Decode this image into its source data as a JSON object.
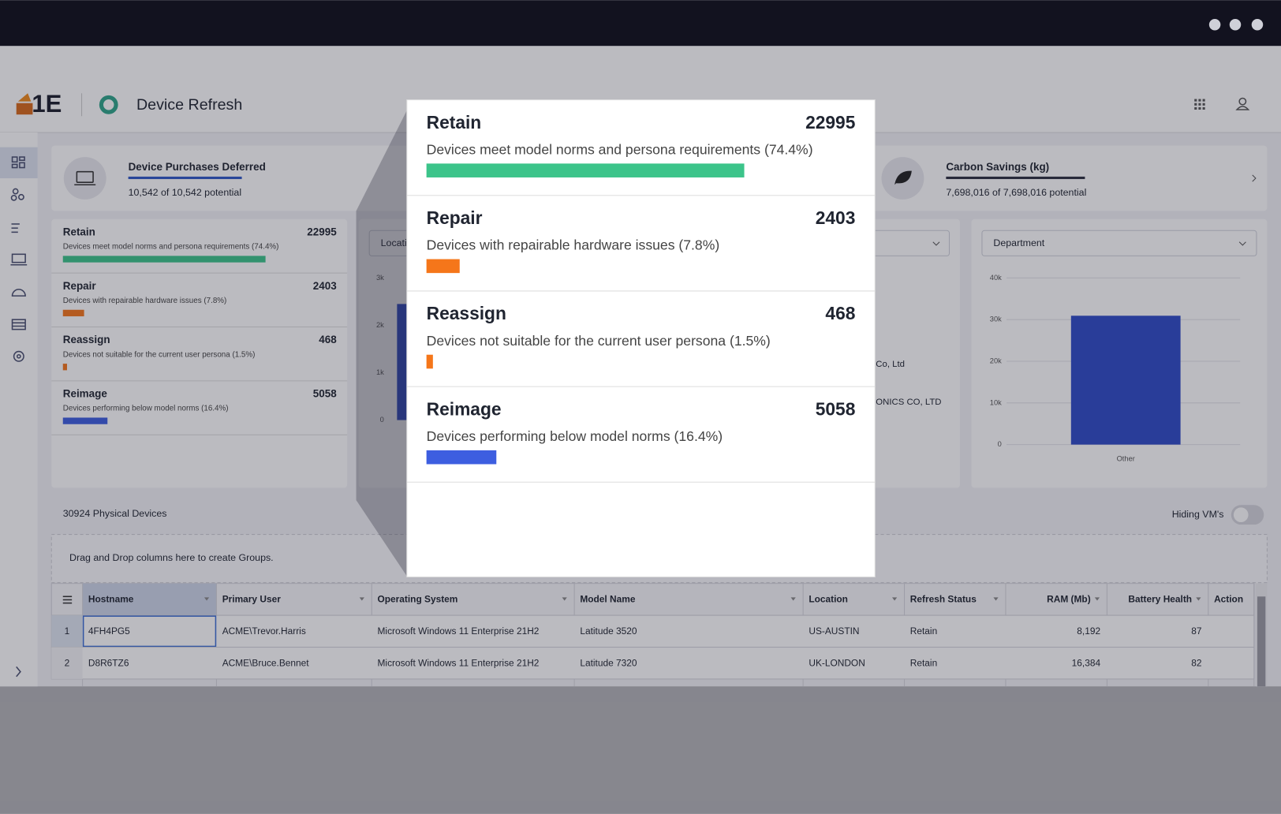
{
  "header": {
    "logo": "1E",
    "app_title": "Device Refresh"
  },
  "kpis": [
    {
      "title": "Device Purchases Deferred",
      "subtitle": "10,542 of 10,542 potential"
    },
    {
      "title": "Carbon Savings (kg)",
      "subtitle": "7,698,016 of 7,698,016 potential"
    }
  ],
  "recommendations": {
    "items": [
      {
        "name": "Retain",
        "count": 22995,
        "description": "Devices meet model norms and persona requirements (74.4%)",
        "color": "#3cc48a"
      },
      {
        "name": "Repair",
        "count": 2403,
        "description": "Devices with repairable hardware issues (7.8%)",
        "color": "#f5761a"
      },
      {
        "name": "Reassign",
        "count": 468,
        "description": "Devices not suitable for the current user persona (1.5%)",
        "color": "#f5761a"
      },
      {
        "name": "Reimage",
        "count": 5058,
        "description": "Devices performing below model norms (16.4%)",
        "color": "#3d5ee0"
      }
    ]
  },
  "charts": [
    {
      "type": "bar",
      "filter": "Location",
      "categories": [
        null
      ],
      "values": [
        2450
      ],
      "color": "#2f4bc8",
      "ylim": [
        0,
        3000
      ],
      "yticks": [
        0,
        {
          "value": 1000,
          "label": "1k"
        },
        {
          "value": 2000,
          "label": "2k"
        },
        {
          "value": 3000,
          "label": "3k"
        }
      ],
      "grid": false
    },
    {
      "type": "bar",
      "filter": "Department",
      "categories": [
        "Other"
      ],
      "values": [
        30924
      ],
      "color": "#2f4bc8",
      "ylim": [
        0,
        40000
      ],
      "yticks": [
        0,
        {
          "value": 10000,
          "label": "10k"
        },
        {
          "value": 20000,
          "label": "20k"
        },
        {
          "value": 30000,
          "label": "30k"
        },
        {
          "value": 40000,
          "label": "40k"
        }
      ],
      "grid": true
    }
  ],
  "hidden_chart": {
    "labels": [
      "Co, Ltd",
      "ONICS CO, LTD"
    ]
  },
  "devices": {
    "count_label": "30924 Physical Devices",
    "vm_toggle": "Hiding VM's",
    "group_hint": "Drag and Drop columns here to create Groups."
  },
  "table": {
    "columns": [
      "Hostname",
      "Primary User",
      "Operating System",
      "Model Name",
      "Location",
      "Refresh Status",
      "RAM (Mb)",
      "Battery Health",
      "Action"
    ],
    "rows": [
      [
        "1",
        "4FH4PG5",
        "ACME\\Trevor.Harris",
        "Microsoft Windows 11 Enterprise 21H2",
        "Latitude 3520",
        "US-AUSTIN",
        "Retain",
        "8,192",
        "87",
        ""
      ],
      [
        "2",
        "D8R6TZ6",
        "ACME\\Bruce.Bennet",
        "Microsoft Windows 11 Enterprise 21H2",
        "Latitude 7320",
        "UK-LONDON",
        "Retain",
        "16,384",
        "82",
        ""
      ]
    ]
  }
}
